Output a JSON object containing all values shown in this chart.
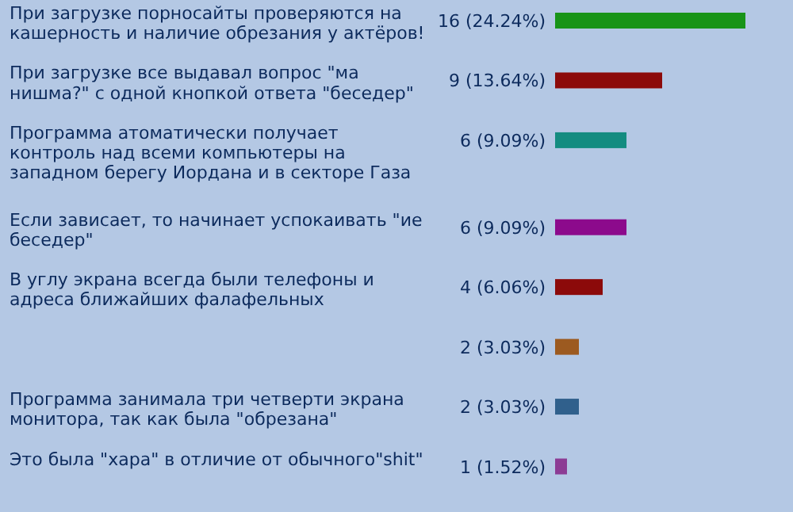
{
  "chart_data": {
    "type": "bar",
    "orientation": "horizontal",
    "categories": [
      "При загрузке порносайты проверяются на кашерность и наличие обрезания у актёров!",
      "При загрузке все выдавал вопрос \"ма нишма?\" с одной кнопкой ответа \"беседер\"",
      "Программа атоматически получает контроль над всеми компьютеры на западном берегу Иордана и в секторе Газа",
      "Если зависает, то начинает успокаивать \"ие беседер\"",
      "В углу экрана всегда были телефоны и адреса ближайших фалафельных",
      null,
      "Программа занимала три четверти экрана монитора, так как была \"обрезана\"",
      "Это была \"хара\" в отличие от обычного\"shit\""
    ],
    "values": [
      16,
      9,
      6,
      6,
      4,
      2,
      2,
      1
    ],
    "value_labels": [
      "16 (24.24%)",
      "9 (13.64%)",
      "6 (9.09%)",
      "6 (9.09%)",
      "4 (6.06%)",
      "2 (3.03%)",
      "2 (3.03%)",
      "1 (1.52%)"
    ],
    "colors": [
      "#189418",
      "#8c0a0a",
      "#148c80",
      "#8c0a8c",
      "#8c0a0a",
      "#9c5a20",
      "#30608c",
      "#8c3c94"
    ]
  }
}
